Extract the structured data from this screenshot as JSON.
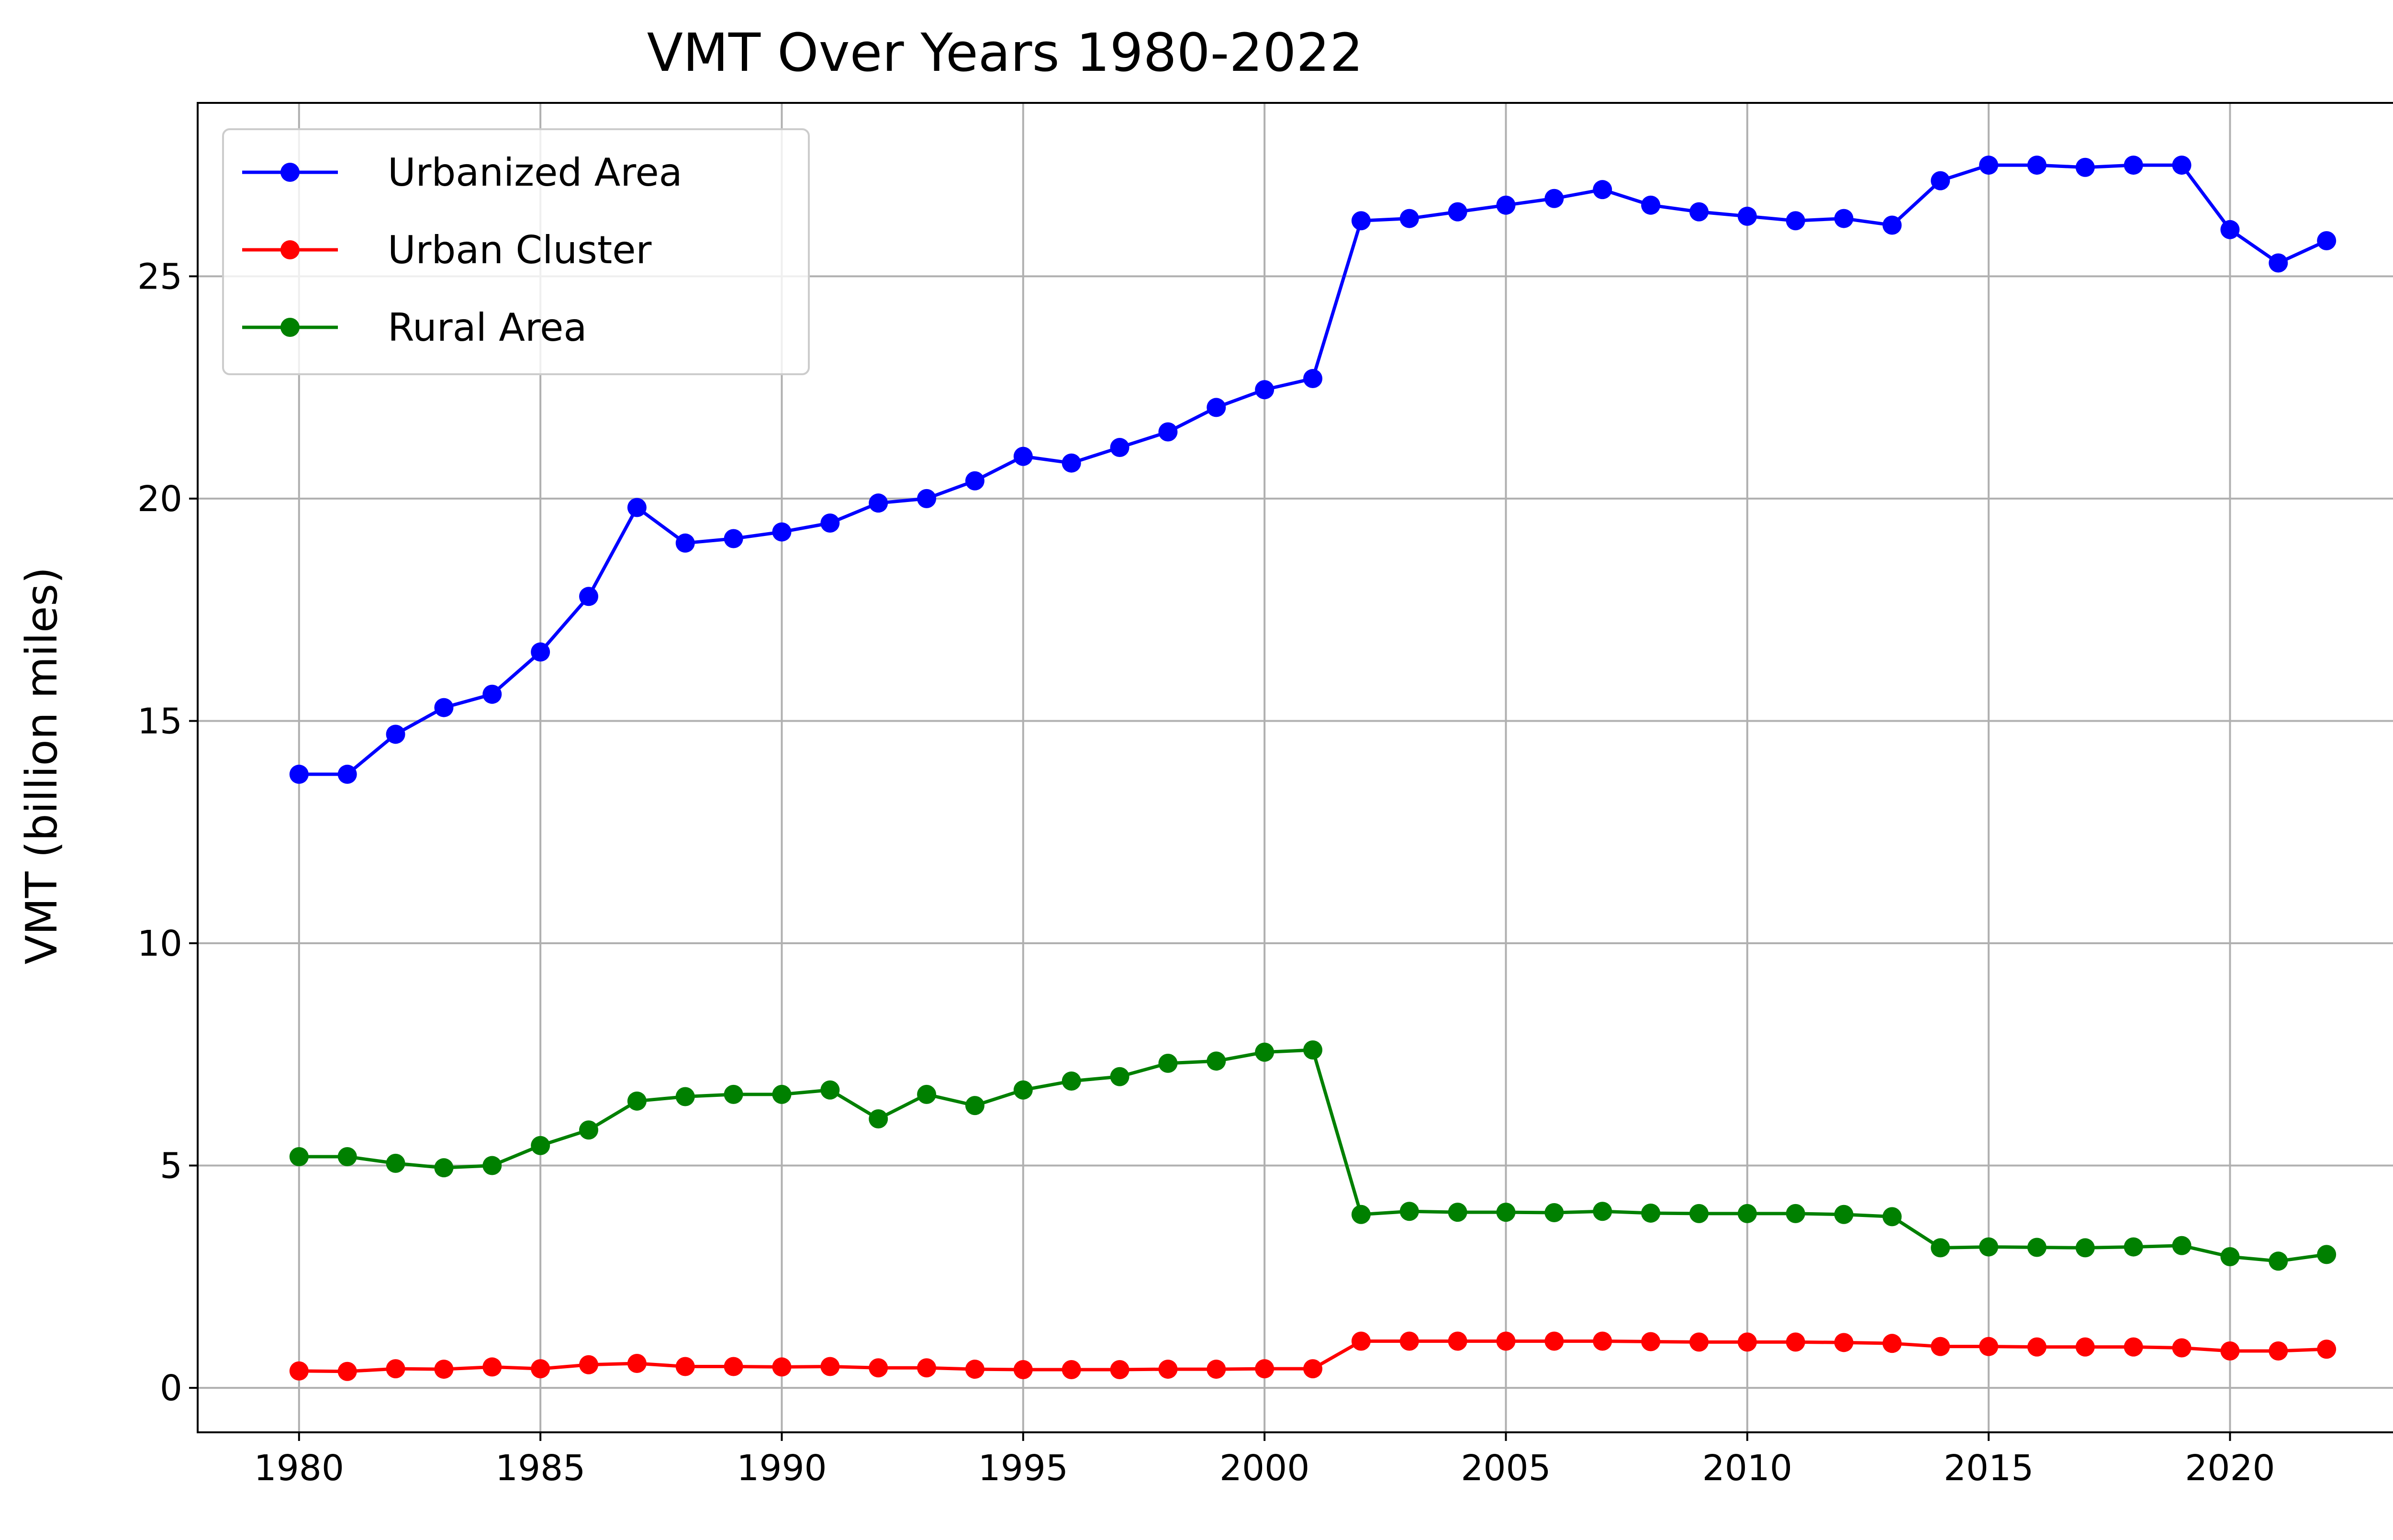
{
  "chart_data": {
    "type": "line",
    "title": "VMT Over Years 1980-2022",
    "xlabel": "",
    "ylabel": "VMT (billion miles)",
    "x": [
      1980,
      1981,
      1982,
      1983,
      1984,
      1985,
      1986,
      1987,
      1988,
      1989,
      1990,
      1991,
      1992,
      1993,
      1994,
      1995,
      1996,
      1997,
      1998,
      1999,
      2000,
      2001,
      2002,
      2003,
      2004,
      2005,
      2006,
      2007,
      2008,
      2009,
      2010,
      2011,
      2012,
      2013,
      2014,
      2015,
      2016,
      2017,
      2018,
      2019,
      2020,
      2021,
      2022
    ],
    "xlim": [
      1977.9,
      2024.1
    ],
    "ylim": [
      -1.0,
      28.9
    ],
    "x_ticks": [
      1980,
      1985,
      1990,
      1995,
      2000,
      2005,
      2010,
      2015,
      2020
    ],
    "y_ticks": [
      0,
      5,
      10,
      15,
      20,
      25
    ],
    "grid": true,
    "legend_position": "top-left",
    "series": [
      {
        "name": "Urbanized Area",
        "color": "#0000ff",
        "values": [
          13.8,
          13.8,
          14.7,
          15.3,
          15.6,
          16.55,
          17.8,
          19.8,
          19.0,
          19.1,
          19.25,
          19.45,
          19.9,
          20.0,
          20.4,
          20.95,
          20.8,
          21.15,
          21.5,
          22.05,
          22.45,
          22.7,
          26.25,
          26.3,
          26.45,
          26.6,
          26.75,
          26.95,
          26.6,
          26.45,
          26.35,
          26.25,
          26.3,
          26.15,
          27.15,
          27.5,
          27.5,
          27.45,
          27.5,
          27.5,
          26.05,
          25.3,
          25.8
        ]
      },
      {
        "name": "Urban Cluster",
        "color": "#ff0000",
        "values": [
          0.38,
          0.37,
          0.43,
          0.42,
          0.47,
          0.43,
          0.52,
          0.55,
          0.48,
          0.48,
          0.47,
          0.48,
          0.45,
          0.45,
          0.42,
          0.41,
          0.41,
          0.41,
          0.42,
          0.42,
          0.43,
          0.43,
          1.05,
          1.05,
          1.05,
          1.05,
          1.05,
          1.05,
          1.04,
          1.03,
          1.03,
          1.03,
          1.02,
          1.0,
          0.93,
          0.93,
          0.92,
          0.92,
          0.92,
          0.9,
          0.83,
          0.83,
          0.87
        ]
      },
      {
        "name": "Rural Area",
        "color": "#008000",
        "values": [
          5.2,
          5.2,
          5.05,
          4.95,
          5.0,
          5.45,
          5.8,
          6.45,
          6.55,
          6.6,
          6.6,
          6.7,
          6.05,
          6.6,
          6.35,
          6.7,
          6.9,
          7.0,
          7.3,
          7.35,
          7.55,
          7.6,
          3.9,
          3.97,
          3.95,
          3.95,
          3.94,
          3.97,
          3.93,
          3.92,
          3.92,
          3.92,
          3.9,
          3.85,
          3.15,
          3.17,
          3.16,
          3.15,
          3.17,
          3.2,
          2.95,
          2.85,
          3.0
        ]
      }
    ]
  }
}
